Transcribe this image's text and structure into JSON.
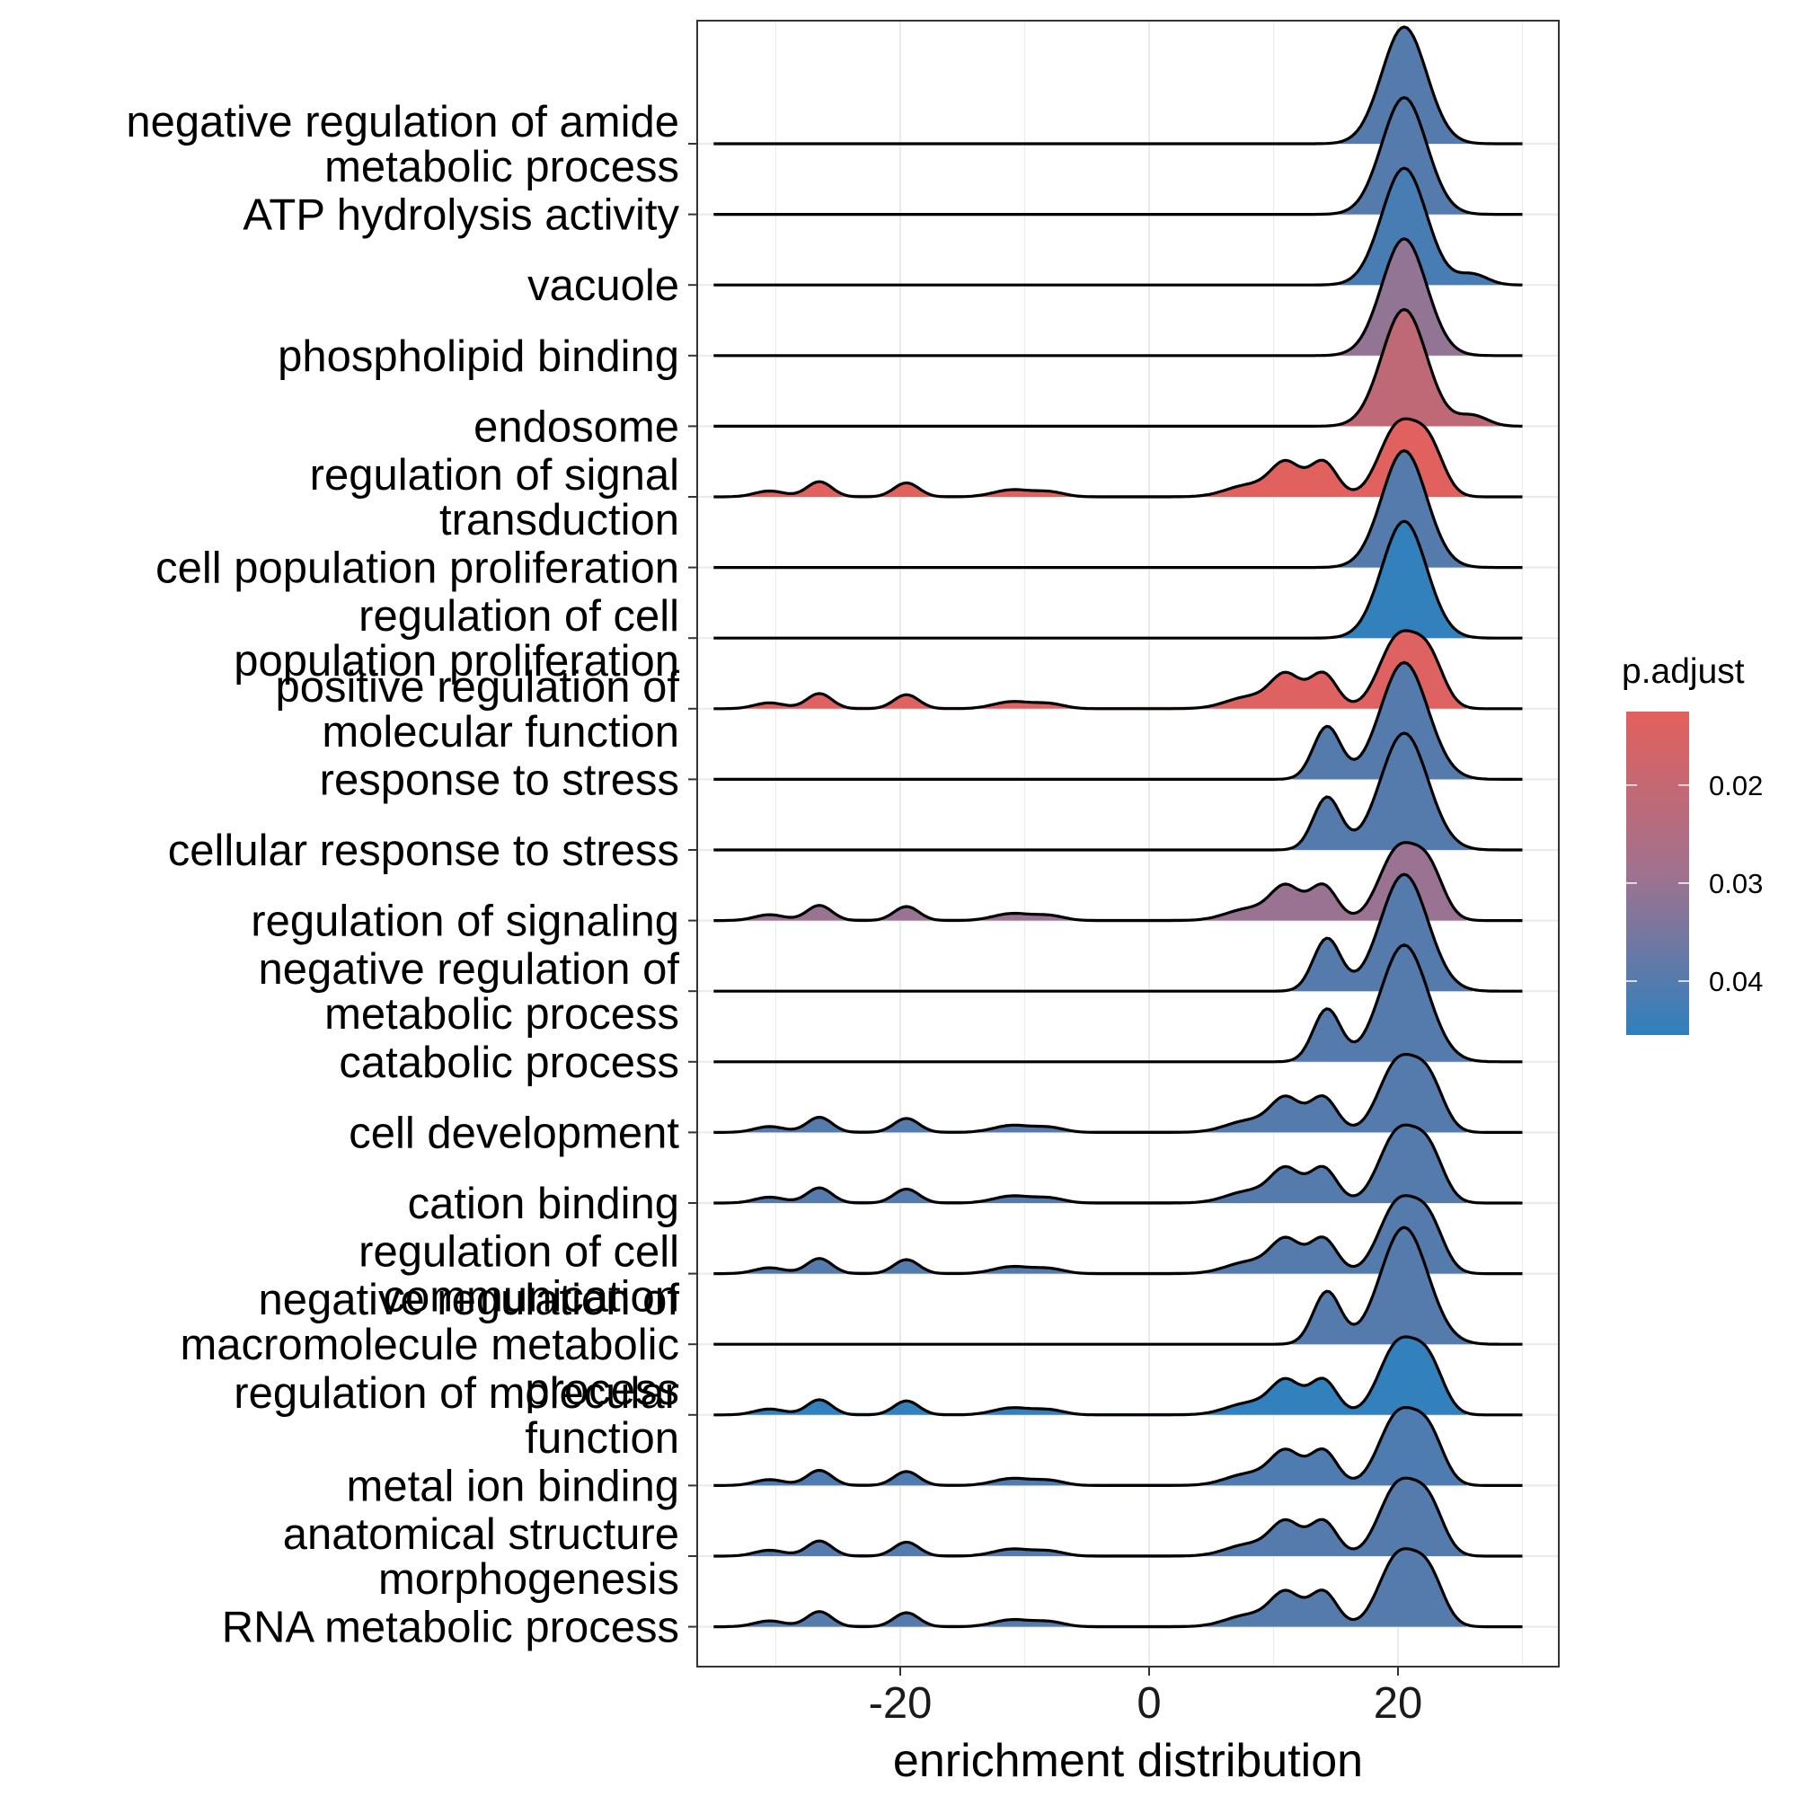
{
  "chart_data": {
    "type": "ridgeline",
    "xlabel": "enrichment distribution",
    "xlim": [
      -35,
      30
    ],
    "x_ticks": [
      -20,
      0,
      20
    ],
    "x_tick_labels": [
      "-20",
      "0",
      "20"
    ],
    "legend": {
      "title": "p.adjust",
      "position": "right",
      "range": [
        0.0125,
        0.0455
      ],
      "ticks": [
        0.02,
        0.03,
        0.04
      ],
      "tick_labels": [
        "0.02",
        "0.03",
        "0.04"
      ],
      "color_low": "#E3605C",
      "color_high": "#2F80BD"
    },
    "grid": true,
    "series": [
      {
        "label": "negative regulation of amide\nmetabolic process",
        "p_adjust": 0.04,
        "shape": "single"
      },
      {
        "label": "ATP hydrolysis activity",
        "p_adjust": 0.04,
        "shape": "single"
      },
      {
        "label": "vacuole",
        "p_adjust": 0.042,
        "shape": "single_tail"
      },
      {
        "label": "phospholipid binding",
        "p_adjust": 0.031,
        "shape": "single"
      },
      {
        "label": "endosome",
        "p_adjust": 0.021,
        "shape": "single_tail"
      },
      {
        "label": "regulation of signal\ntransduction",
        "p_adjust": 0.013,
        "shape": "full"
      },
      {
        "label": "cell population proliferation",
        "p_adjust": 0.04,
        "shape": "single"
      },
      {
        "label": "regulation of cell\npopulation proliferation",
        "p_adjust": 0.045,
        "shape": "single"
      },
      {
        "label": "positive regulation of\nmolecular function",
        "p_adjust": 0.014,
        "shape": "full"
      },
      {
        "label": "response to stress",
        "p_adjust": 0.04,
        "shape": "double"
      },
      {
        "label": "cellular response to stress",
        "p_adjust": 0.04,
        "shape": "double"
      },
      {
        "label": "regulation of signaling",
        "p_adjust": 0.03,
        "shape": "full"
      },
      {
        "label": "negative regulation of\nmetabolic process",
        "p_adjust": 0.04,
        "shape": "double"
      },
      {
        "label": "catabolic process",
        "p_adjust": 0.04,
        "shape": "double"
      },
      {
        "label": "cell development",
        "p_adjust": 0.04,
        "shape": "full"
      },
      {
        "label": "cation binding",
        "p_adjust": 0.04,
        "shape": "full"
      },
      {
        "label": "regulation of cell\ncommunication",
        "p_adjust": 0.04,
        "shape": "full"
      },
      {
        "label": "negative regulation of\nmacromolecule metabolic\nprocess",
        "p_adjust": 0.04,
        "shape": "double"
      },
      {
        "label": "regulation of molecular\nfunction",
        "p_adjust": 0.045,
        "shape": "full"
      },
      {
        "label": "metal ion binding",
        "p_adjust": 0.041,
        "shape": "full"
      },
      {
        "label": "anatomical structure\nmorphogenesis",
        "p_adjust": 0.04,
        "shape": "full"
      },
      {
        "label": "RNA metabolic process",
        "p_adjust": 0.04,
        "shape": "full"
      }
    ]
  }
}
